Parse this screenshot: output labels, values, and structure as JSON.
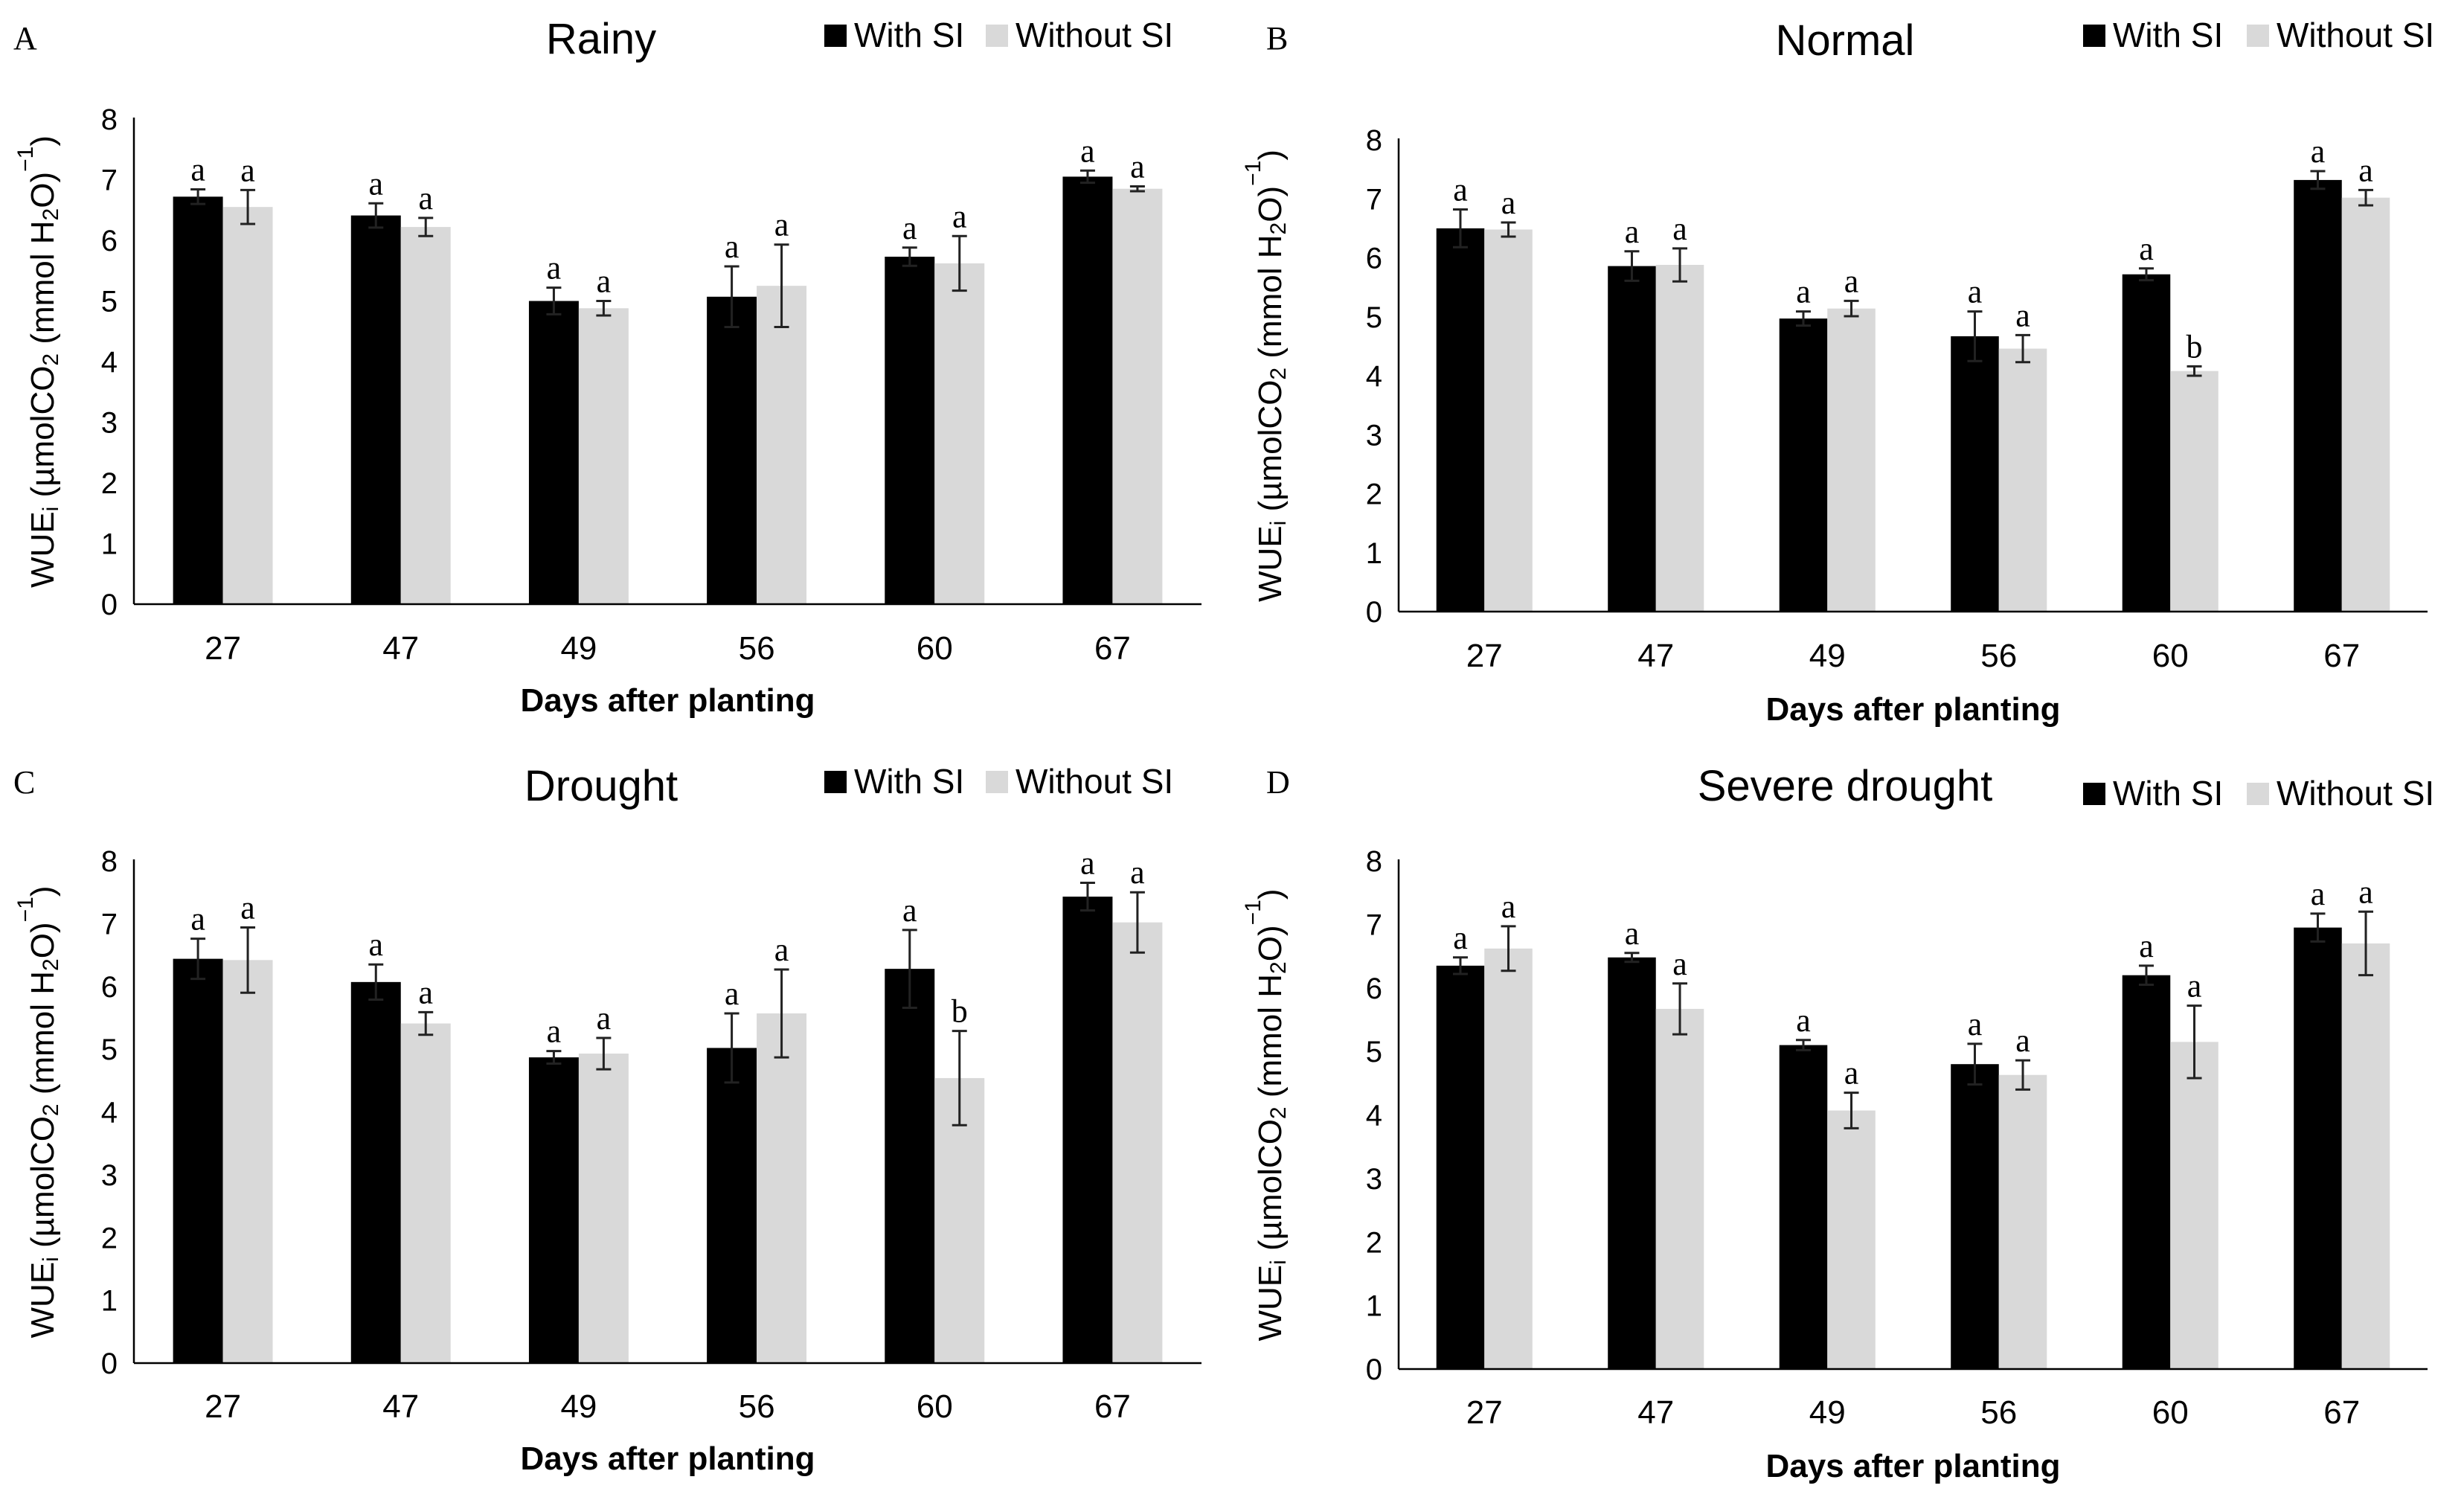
{
  "colors": {
    "with_si": "#000000",
    "without_si": "#d9d9d9"
  },
  "chart_data": [
    {
      "panel": "A",
      "type": "bar",
      "title": "Rainy",
      "xlabel": "Days after planting",
      "ylabel_parts": [
        "WUE",
        "i",
        " (µmolCO",
        "2",
        " (mmol H",
        "2",
        "O)",
        "−1",
        ")"
      ],
      "ylim": [
        0,
        8
      ],
      "yticks": [
        "0",
        "1",
        "2",
        "3",
        "4",
        "5",
        "6",
        "7",
        "8"
      ],
      "categories": [
        "27",
        "47",
        "49",
        "56",
        "60",
        "67"
      ],
      "series": [
        {
          "name": "With SI",
          "values": [
            6.72,
            6.41,
            5.0,
            5.07,
            5.73,
            7.05
          ],
          "errors": [
            0.12,
            0.2,
            0.22,
            0.5,
            0.15,
            0.1
          ],
          "sig": [
            "a",
            "a",
            "a",
            "a",
            "a",
            "a"
          ]
        },
        {
          "name": "Without SI",
          "values": [
            6.55,
            6.22,
            4.88,
            5.25,
            5.62,
            6.85
          ],
          "errors": [
            0.28,
            0.15,
            0.12,
            0.68,
            0.45,
            0.04
          ],
          "sig": [
            "a",
            "a",
            "a",
            "a",
            "a",
            "a"
          ]
        }
      ],
      "legend": "top-right"
    },
    {
      "panel": "B",
      "type": "bar",
      "title": "Normal",
      "xlabel": "Days after planting",
      "ylabel_parts": [
        "WUE",
        "i",
        " (µmolCO",
        "2",
        " (mmol H",
        "2",
        "O)",
        "−1",
        ")"
      ],
      "ylim": [
        0,
        8
      ],
      "yticks": [
        "0",
        "1",
        "2",
        "3",
        "4",
        "5",
        "6",
        "7",
        "8"
      ],
      "categories": [
        "27",
        "47",
        "49",
        "56",
        "60",
        "67"
      ],
      "series": [
        {
          "name": "With SI",
          "values": [
            6.5,
            5.86,
            4.97,
            4.67,
            5.72,
            7.32
          ],
          "errors": [
            0.32,
            0.25,
            0.12,
            0.42,
            0.1,
            0.15
          ],
          "sig": [
            "a",
            "a",
            "a",
            "a",
            "a",
            "a"
          ]
        },
        {
          "name": "Without SI",
          "values": [
            6.48,
            5.88,
            5.14,
            4.46,
            4.08,
            7.02
          ],
          "errors": [
            0.12,
            0.28,
            0.13,
            0.23,
            0.08,
            0.13
          ],
          "sig": [
            "a",
            "a",
            "a",
            "a",
            "b",
            "a"
          ]
        }
      ],
      "legend": "top-right"
    },
    {
      "panel": "C",
      "type": "bar",
      "title": "Drought",
      "xlabel": "Days after planting",
      "ylabel_parts": [
        "WUE",
        "i",
        " (µmolCO",
        "2",
        " (mmol H",
        "2",
        "O)",
        "−1",
        ")"
      ],
      "ylim": [
        0,
        8
      ],
      "yticks": [
        "0",
        "1",
        "2",
        "3",
        "4",
        "5",
        "6",
        "7",
        "8"
      ],
      "categories": [
        "27",
        "47",
        "49",
        "56",
        "60",
        "67"
      ],
      "series": [
        {
          "name": "With SI",
          "values": [
            6.44,
            6.07,
            4.87,
            5.02,
            6.28,
            7.43
          ],
          "errors": [
            0.32,
            0.28,
            0.1,
            0.55,
            0.62,
            0.22
          ],
          "sig": [
            "a",
            "a",
            "a",
            "a",
            "a",
            "a"
          ]
        },
        {
          "name": "Without SI",
          "values": [
            6.42,
            5.41,
            4.93,
            5.57,
            4.54,
            7.02
          ],
          "errors": [
            0.52,
            0.18,
            0.25,
            0.7,
            0.75,
            0.48
          ],
          "sig": [
            "a",
            "a",
            "a",
            "a",
            "b",
            "a"
          ]
        }
      ],
      "legend": "top-right"
    },
    {
      "panel": "D",
      "type": "bar",
      "title": "Severe drought",
      "xlabel": "Days after planting",
      "ylabel_parts": [
        "WUE",
        "i",
        " (µmolCO",
        "2",
        " (mmol H",
        "2",
        "O)",
        "−1",
        ")"
      ],
      "ylim": [
        0,
        8
      ],
      "yticks": [
        "0",
        "1",
        "2",
        "3",
        "4",
        "5",
        "6",
        "7",
        "8"
      ],
      "categories": [
        "27",
        "47",
        "49",
        "56",
        "60",
        "67"
      ],
      "series": [
        {
          "name": "With SI",
          "values": [
            6.35,
            6.48,
            5.1,
            4.8,
            6.2,
            6.95
          ],
          "errors": [
            0.13,
            0.07,
            0.08,
            0.32,
            0.15,
            0.22
          ],
          "sig": [
            "a",
            "a",
            "a",
            "a",
            "a",
            "a"
          ]
        },
        {
          "name": "Without SI",
          "values": [
            6.62,
            5.67,
            4.07,
            4.63,
            5.15,
            6.7
          ],
          "errors": [
            0.35,
            0.4,
            0.28,
            0.23,
            0.57,
            0.5
          ],
          "sig": [
            "a",
            "a",
            "a",
            "a",
            "a",
            "a"
          ]
        }
      ],
      "legend": "top-right"
    }
  ]
}
